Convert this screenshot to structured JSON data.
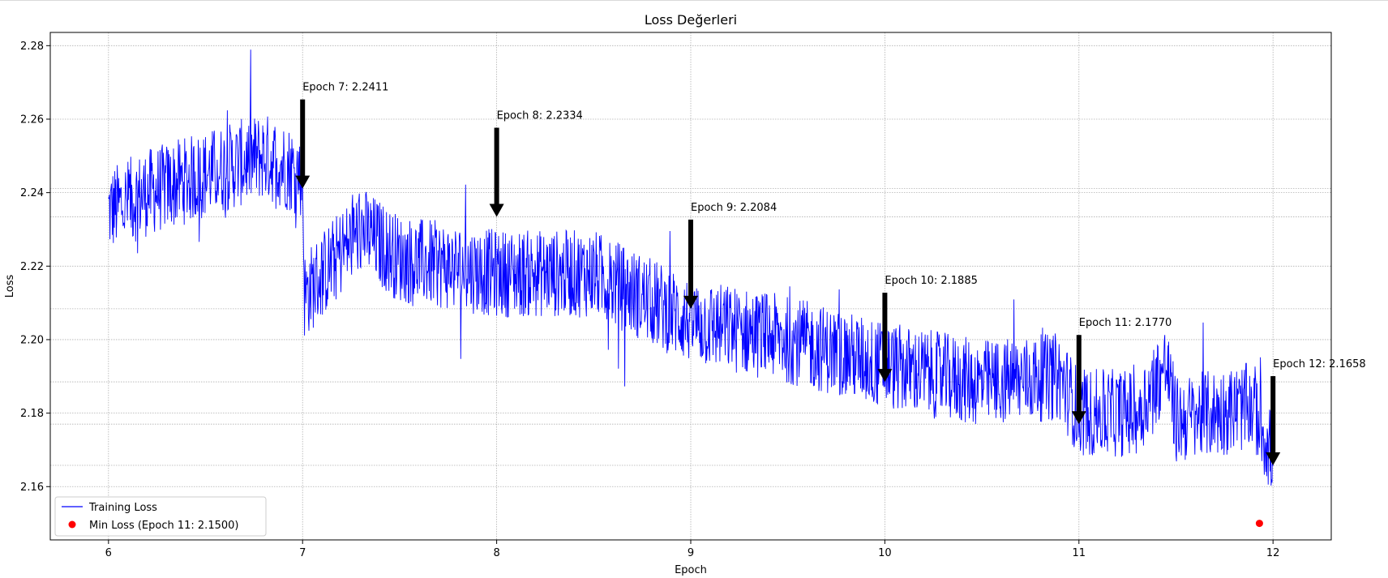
{
  "chart_data": {
    "type": "line",
    "title": "Loss Değerleri",
    "xlabel": "Epoch",
    "ylabel": "Loss",
    "xlim": [
      5.7,
      12.3
    ],
    "ylim": [
      2.1455,
      2.2836
    ],
    "x_ticks": [
      "6",
      "7",
      "8",
      "9",
      "10",
      "11",
      "12"
    ],
    "y_ticks": [
      "2.16",
      "2.18",
      "2.20",
      "2.22",
      "2.24",
      "2.26",
      "2.28"
    ],
    "grid": true,
    "legend_position": "lower-left",
    "series": [
      {
        "name": "Training Loss",
        "color": "#0000ff",
        "x_start": 6.0,
        "x_end": 12.0,
        "trend": [
          [
            6.0,
            2.235
          ],
          [
            6.2,
            2.24
          ],
          [
            6.5,
            2.245
          ],
          [
            6.8,
            2.25
          ],
          [
            7.0,
            2.245
          ],
          [
            7.01,
            2.212
          ],
          [
            7.3,
            2.23
          ],
          [
            7.5,
            2.222
          ],
          [
            8.0,
            2.218
          ],
          [
            8.5,
            2.218
          ],
          [
            9.0,
            2.205
          ],
          [
            9.5,
            2.2
          ],
          [
            10.0,
            2.193
          ],
          [
            10.5,
            2.188
          ],
          [
            10.9,
            2.19
          ],
          [
            11.0,
            2.18
          ],
          [
            11.3,
            2.18
          ],
          [
            11.45,
            2.193
          ],
          [
            11.5,
            2.178
          ],
          [
            11.9,
            2.182
          ],
          [
            12.0,
            2.168
          ]
        ],
        "noise_amplitude": 0.012
      }
    ],
    "min_point": {
      "label": "Min Loss (Epoch 11: 2.1500)",
      "x": 11.93,
      "y": 2.15,
      "color": "#ff0000"
    },
    "annotations": [
      {
        "text": "Epoch 7: 2.2411",
        "x": 7,
        "y": 2.2411
      },
      {
        "text": "Epoch 8: 2.2334",
        "x": 8,
        "y": 2.2334
      },
      {
        "text": "Epoch 9: 2.2084",
        "x": 9,
        "y": 2.2084
      },
      {
        "text": "Epoch 10: 2.1885",
        "x": 10,
        "y": 2.1885
      },
      {
        "text": "Epoch 11: 2.1770",
        "x": 11,
        "y": 2.177
      },
      {
        "text": "Epoch 12: 2.1658",
        "x": 12,
        "y": 2.1658
      }
    ]
  }
}
